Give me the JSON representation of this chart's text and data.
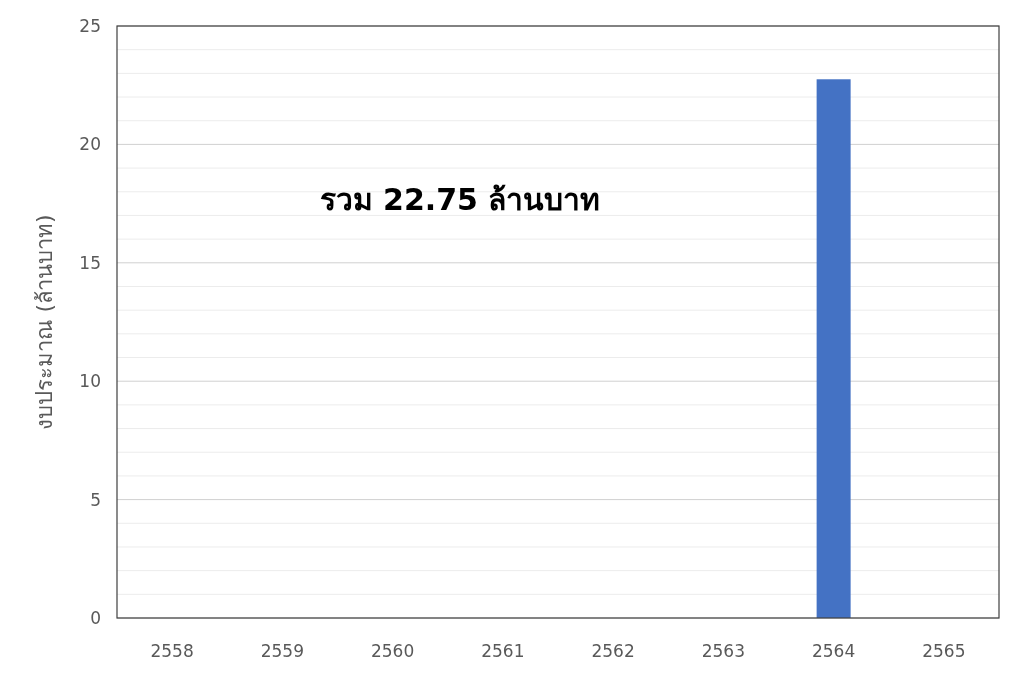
{
  "chart_data": {
    "type": "bar",
    "ylabel": "งบประมาณ (ล้านบาท)",
    "categories": [
      "2558",
      "2559",
      "2560",
      "2561",
      "2562",
      "2563",
      "2564",
      "2565"
    ],
    "values": [
      0,
      0,
      0,
      0,
      0,
      0,
      22.75,
      0
    ],
    "color": "#4472c4",
    "ylim": [
      0,
      25
    ],
    "yticks": [
      0,
      {
        "value": 1,
        "label": null
      },
      {
        "value": 2,
        "label": null
      },
      {
        "value": 3,
        "label": null
      },
      {
        "value": 4,
        "label": null
      },
      5,
      {
        "value": 6,
        "label": null
      },
      {
        "value": 7,
        "label": null
      },
      {
        "value": 8,
        "label": null
      },
      {
        "value": 9,
        "label": null
      },
      10,
      {
        "value": 11,
        "label": null
      },
      {
        "value": 12,
        "label": null
      },
      {
        "value": 13,
        "label": null
      },
      {
        "value": 14,
        "label": null
      },
      15,
      {
        "value": 16,
        "label": null
      },
      {
        "value": 17,
        "label": null
      },
      {
        "value": 18,
        "label": null
      },
      {
        "value": 19,
        "label": null
      },
      20,
      {
        "value": 21,
        "label": null
      },
      {
        "value": 22,
        "label": null
      },
      {
        "value": 23,
        "label": null
      },
      {
        "value": 24,
        "label": null
      },
      25
    ],
    "grid": "y",
    "annotations": [
      "รวม 22.75 ล้านบาท"
    ]
  }
}
